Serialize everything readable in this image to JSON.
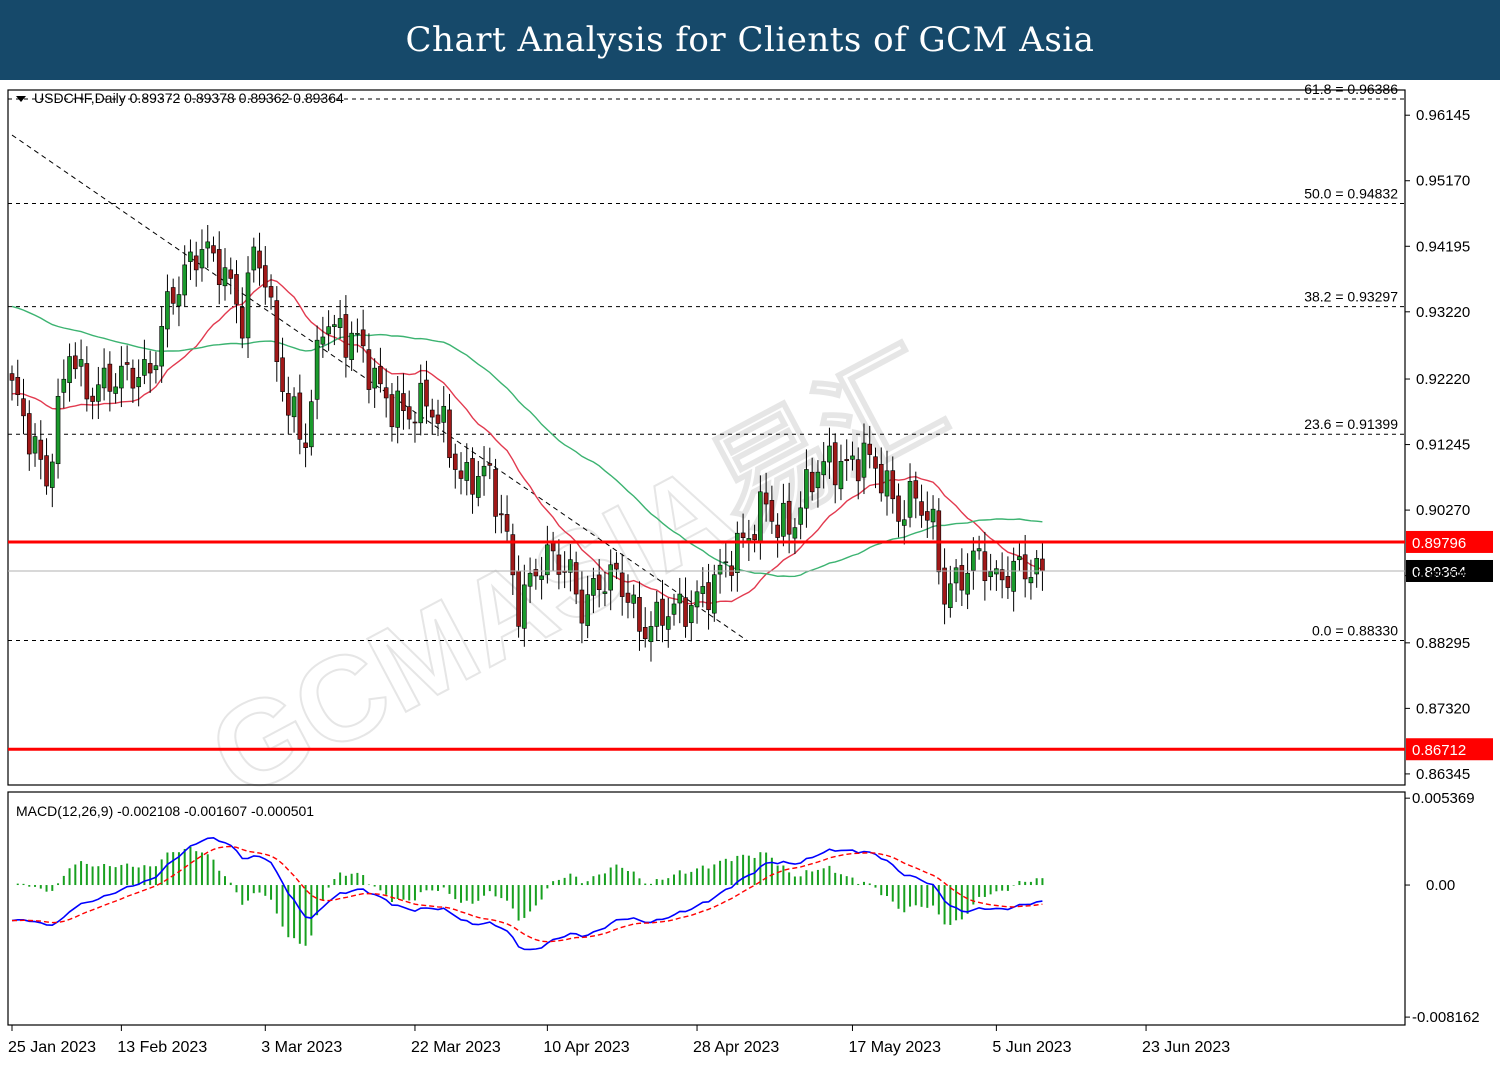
{
  "header": {
    "title": "Chart Analysis for Clients of GCM Asia"
  },
  "chart_data": {
    "type": "candlestick",
    "symbol_info": "USDCHF,Daily  0.89372 0.89378 0.89362 0.89364",
    "price_axis": {
      "ylim": [
        0.8618,
        0.9652
      ],
      "ticks": [
        "0.96145",
        "0.95170",
        "0.94195",
        "0.93220",
        "0.92220",
        "0.91245",
        "0.90270",
        "0.89295",
        "0.88295",
        "0.87320",
        "0.86345"
      ]
    },
    "x_axis": {
      "labels": [
        "25 Jan 2023",
        "13 Feb 2023",
        "3 Mar 2023",
        "22 Mar 2023",
        "10 Apr 2023",
        "28 Apr 2023",
        "17 May 2023",
        "5 Jun 2023",
        "23 Jun 2023"
      ],
      "label_bar_index": [
        0,
        19,
        44,
        70,
        93,
        119,
        146,
        171,
        197
      ]
    },
    "fib_levels": [
      {
        "label": "61.8 = 0.96386",
        "value": 0.96386
      },
      {
        "label": "50.0 = 0.94832",
        "value": 0.94832
      },
      {
        "label": "38.2 = 0.93297",
        "value": 0.93297
      },
      {
        "label": "23.6 = 0.91399",
        "value": 0.91399
      },
      {
        "label": "0.0 = 0.88330",
        "value": 0.8833
      }
    ],
    "horizontal_levels": [
      {
        "label": "0.89796",
        "value": 0.89796,
        "color": "#ff0000"
      },
      {
        "label": "0.86712",
        "value": 0.86712,
        "color": "#ff0000"
      }
    ],
    "current_price": {
      "label": "0.89364",
      "value": 0.89364
    },
    "trendline": {
      "start": [
        "25 Jan 2023",
        0.9585
      ],
      "end": [
        "28 Apr 2023",
        0.8833
      ]
    },
    "anchors": [
      [
        0,
        0.921
      ],
      [
        6,
        0.907
      ],
      [
        10,
        0.927
      ],
      [
        13,
        0.92
      ],
      [
        17,
        0.922
      ],
      [
        20,
        0.923
      ],
      [
        24,
        0.923
      ],
      [
        27,
        0.933
      ],
      [
        30,
        0.938
      ],
      [
        33,
        0.942
      ],
      [
        37,
        0.938
      ],
      [
        40,
        0.931
      ],
      [
        42,
        0.941
      ],
      [
        44,
        0.938
      ],
      [
        46,
        0.925
      ],
      [
        48,
        0.918
      ],
      [
        51,
        0.913
      ],
      [
        54,
        0.931
      ],
      [
        57,
        0.929
      ],
      [
        60,
        0.928
      ],
      [
        63,
        0.922
      ],
      [
        66,
        0.918
      ],
      [
        69,
        0.917
      ],
      [
        72,
        0.919
      ],
      [
        75,
        0.915
      ],
      [
        78,
        0.907
      ],
      [
        81,
        0.908
      ],
      [
        83,
        0.908
      ],
      [
        86,
        0.898
      ],
      [
        88,
        0.888
      ],
      [
        91,
        0.894
      ],
      [
        94,
        0.896
      ],
      [
        97,
        0.893
      ],
      [
        99,
        0.888
      ],
      [
        102,
        0.892
      ],
      [
        105,
        0.893
      ],
      [
        107,
        0.89
      ],
      [
        109,
        0.885
      ],
      [
        111,
        0.8855
      ],
      [
        114,
        0.888
      ],
      [
        117,
        0.888
      ],
      [
        120,
        0.89
      ],
      [
        122,
        0.892
      ],
      [
        125,
        0.896
      ],
      [
        128,
        0.899
      ],
      [
        131,
        0.904
      ],
      [
        133,
        0.9
      ],
      [
        136,
        0.901
      ],
      [
        139,
        0.908
      ],
      [
        142,
        0.91
      ],
      [
        145,
        0.909
      ],
      [
        148,
        0.911
      ],
      [
        151,
        0.908
      ],
      [
        154,
        0.902
      ],
      [
        157,
        0.905
      ],
      [
        160,
        0.9
      ],
      [
        162,
        0.89
      ],
      [
        165,
        0.893
      ],
      [
        168,
        0.896
      ],
      [
        171,
        0.892
      ],
      [
        174,
        0.894
      ],
      [
        177,
        0.894
      ],
      [
        179,
        0.8936
      ]
    ],
    "bar_count": 180,
    "moving_averages": [
      {
        "period": 20,
        "color": "#e23a4f"
      },
      {
        "period": 50,
        "color": "#3cb371"
      }
    ],
    "macd": {
      "label": "MACD(12,26,9) -0.002108 -0.001607 -0.000501",
      "ylim": [
        -0.00865,
        0.00575
      ],
      "ticks": [
        {
          "label": "0.005369",
          "value": 0.005369
        },
        {
          "label": "0.00",
          "value": 0
        },
        {
          "label": "-0.008162",
          "value": -0.008162
        }
      ],
      "scale": 0.53,
      "histogram_scale": 2.2,
      "colors": {
        "macd": "#0000ff",
        "signal": "#ff0000",
        "histogram": "#18a020"
      }
    },
    "watermark": {
      "text": "GCMASIA易汇"
    }
  }
}
